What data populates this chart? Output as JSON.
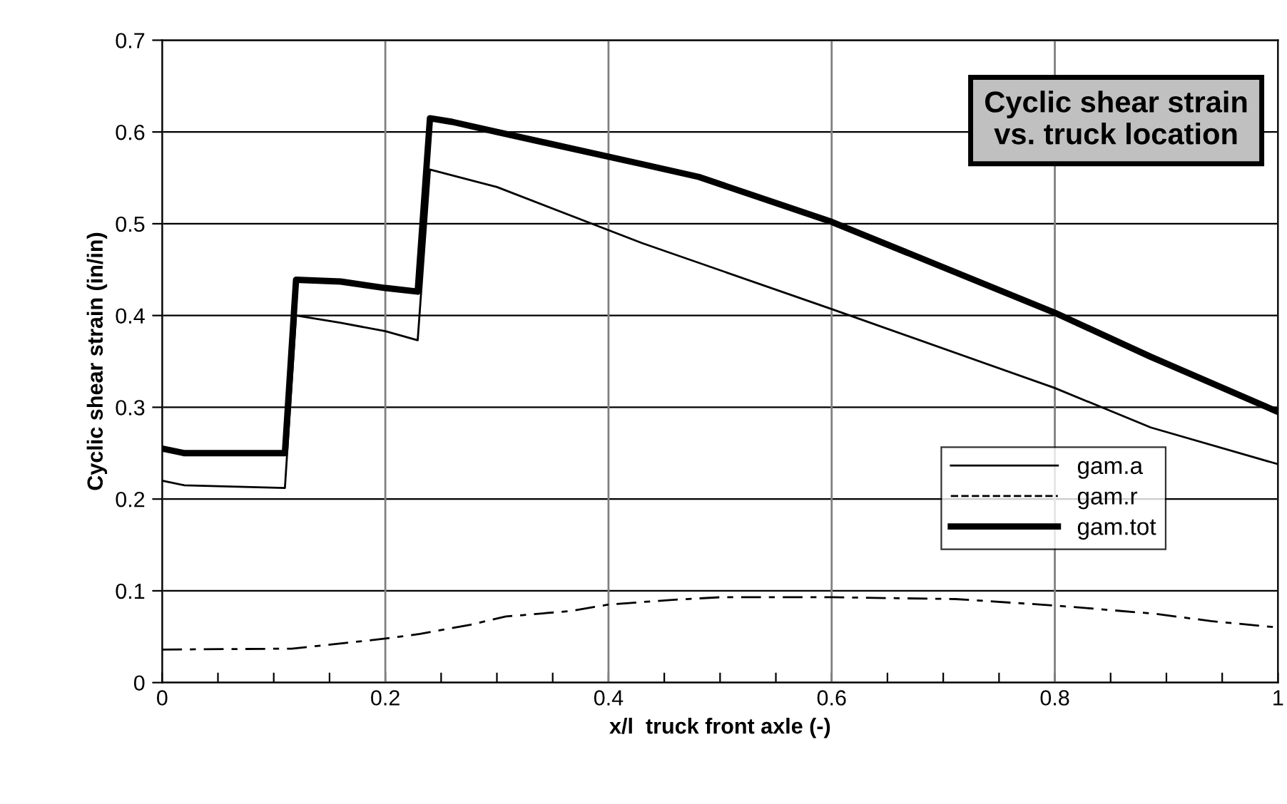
{
  "chart_data": {
    "type": "line",
    "title": "Cyclic shear strain\nvs. truck location",
    "xlabel": "x/l  truck front axle (-)",
    "ylabel": "Cyclic shear strain (in/in)",
    "xlim": [
      0,
      1
    ],
    "ylim": [
      0,
      0.7
    ],
    "xticks": [
      0,
      {
        "value": 0.05,
        "label": null
      },
      {
        "value": 0.1,
        "label": null
      },
      {
        "value": 0.15,
        "label": null
      },
      0.2,
      {
        "value": 0.25,
        "label": null
      },
      {
        "value": 0.3,
        "label": null
      },
      {
        "value": 0.35,
        "label": null
      },
      0.4,
      {
        "value": 0.45,
        "label": null
      },
      {
        "value": 0.5,
        "label": null
      },
      {
        "value": 0.55,
        "label": null
      },
      0.6,
      {
        "value": 0.65,
        "label": null
      },
      {
        "value": 0.7,
        "label": null
      },
      {
        "value": 0.75,
        "label": null
      },
      0.8,
      {
        "value": 0.85,
        "label": null
      },
      {
        "value": 0.9,
        "label": null
      },
      {
        "value": 0.95,
        "label": null
      },
      1
    ],
    "yticks": [
      0,
      0.1,
      0.2,
      0.3,
      0.4,
      0.5,
      0.6,
      0.7
    ],
    "grid": true,
    "legend": "right",
    "marker": "none",
    "series": [
      {
        "name": "gam.a",
        "color": "#000000",
        "line_style": "solid",
        "x": [
          0,
          0.02,
          0.11,
          0.12,
          0.16,
          0.2,
          0.229,
          0.24,
          0.3,
          0.43,
          0.6,
          0.8,
          0.886,
          1.0
        ],
        "values": [
          0.22,
          0.215,
          0.212,
          0.4,
          0.392,
          0.383,
          0.373,
          0.559,
          0.54,
          0.479,
          0.407,
          0.321,
          0.278,
          0.238
        ]
      },
      {
        "name": "gam.r",
        "color": "#000000",
        "line_style": "dashdot",
        "x": [
          0,
          0.116,
          0.148,
          0.2,
          0.231,
          0.276,
          0.308,
          0.366,
          0.4,
          0.455,
          0.5,
          0.6,
          0.711,
          0.8,
          0.89,
          0.94,
          1.0
        ],
        "values": [
          0.036,
          0.037,
          0.041,
          0.048,
          0.053,
          0.063,
          0.072,
          0.078,
          0.085,
          0.09,
          0.093,
          0.093,
          0.091,
          0.084,
          0.075,
          0.067,
          0.06
        ]
      },
      {
        "name": "gam.tot",
        "color": "#000000",
        "line_style": "solid",
        "x": [
          0,
          0.02,
          0.11,
          0.12,
          0.16,
          0.2,
          0.229,
          0.24,
          0.26,
          0.3,
          0.43,
          0.481,
          0.6,
          0.8,
          0.886,
          1.0
        ],
        "values": [
          0.255,
          0.25,
          0.25,
          0.439,
          0.437,
          0.43,
          0.426,
          0.615,
          0.611,
          0.6,
          0.565,
          0.551,
          0.502,
          0.403,
          0.355,
          0.295
        ]
      }
    ]
  }
}
